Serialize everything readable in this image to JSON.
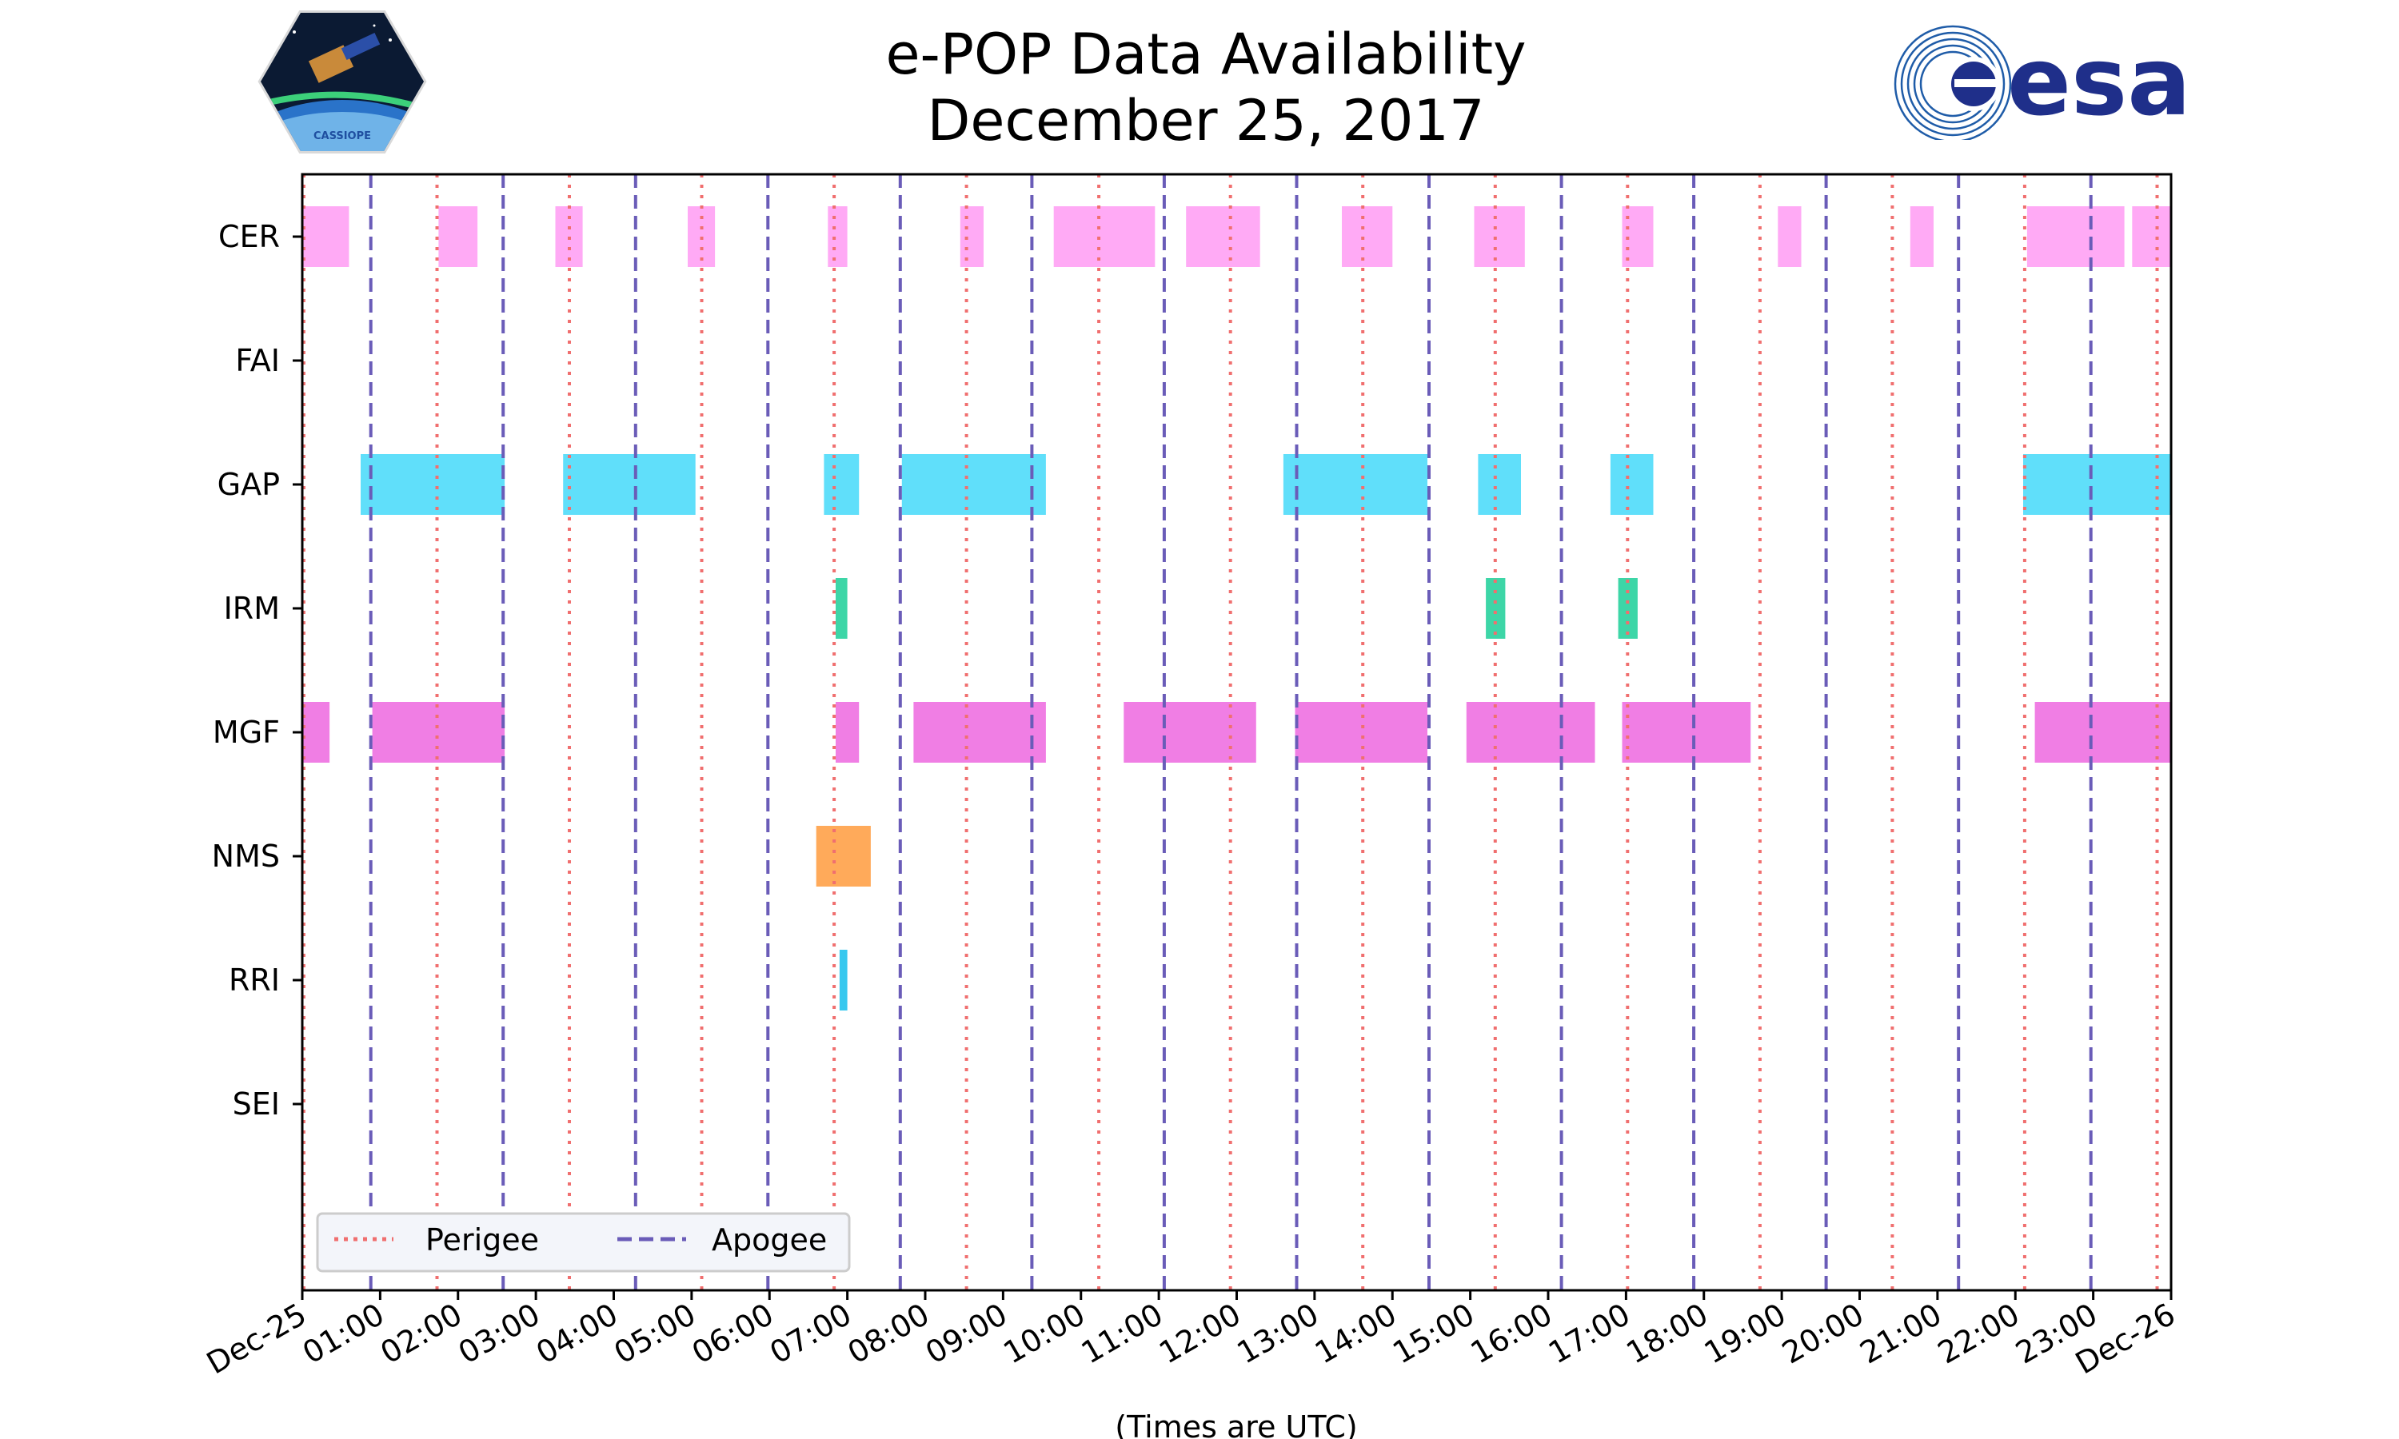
{
  "chart_data": {
    "type": "broken_barh",
    "title": [
      "e-POP Data Availability",
      "December 25, 2017"
    ],
    "xlabel": "(Times are UTC)",
    "ylabel": "",
    "xlim": [
      0,
      24
    ],
    "x_tick_labels": [
      "Dec-25",
      "01:00",
      "02:00",
      "03:00",
      "04:00",
      "05:00",
      "06:00",
      "07:00",
      "08:00",
      "09:00",
      "10:00",
      "11:00",
      "12:00",
      "13:00",
      "14:00",
      "15:00",
      "16:00",
      "17:00",
      "18:00",
      "19:00",
      "20:00",
      "21:00",
      "22:00",
      "23:00",
      "Dec-26"
    ],
    "instruments": [
      "CER",
      "FAI",
      "GAP",
      "IRM",
      "MGF",
      "NMS",
      "RRI",
      "SEI"
    ],
    "colors": {
      "CER": "#ffaaf5",
      "GAP": "#60dffa",
      "IRM": "#3dd6a7",
      "MGF": "#f07ee4",
      "NMS": "#ffaa5a",
      "RRI": "#37c8ef",
      "perigee": "#f06f6f",
      "apogee": "#6a5cb8"
    },
    "series": [
      {
        "name": "CER",
        "intervals": [
          [
            0.0,
            0.6
          ],
          [
            1.75,
            2.25
          ],
          [
            3.25,
            3.6
          ],
          [
            4.95,
            5.3
          ],
          [
            6.75,
            7.0
          ],
          [
            8.45,
            8.75
          ],
          [
            9.65,
            10.95
          ],
          [
            11.35,
            12.3
          ],
          [
            13.35,
            14.0
          ],
          [
            15.05,
            15.7
          ],
          [
            16.95,
            17.35
          ],
          [
            18.95,
            19.25
          ],
          [
            20.65,
            20.95
          ],
          [
            22.15,
            23.4
          ],
          [
            23.5,
            24.0
          ]
        ]
      },
      {
        "name": "FAI",
        "intervals": []
      },
      {
        "name": "GAP",
        "intervals": [
          [
            0.75,
            2.6
          ],
          [
            3.35,
            5.05
          ],
          [
            6.7,
            7.15
          ],
          [
            7.7,
            9.55
          ],
          [
            12.6,
            14.45
          ],
          [
            15.1,
            15.65
          ],
          [
            16.8,
            17.35
          ],
          [
            22.1,
            24.0
          ]
        ]
      },
      {
        "name": "IRM",
        "intervals": [
          [
            6.85,
            7.0
          ],
          [
            15.2,
            15.45
          ],
          [
            16.9,
            17.15
          ]
        ]
      },
      {
        "name": "MGF",
        "intervals": [
          [
            0.0,
            0.35
          ],
          [
            0.9,
            2.6
          ],
          [
            6.85,
            7.15
          ],
          [
            7.85,
            9.55
          ],
          [
            10.55,
            12.25
          ],
          [
            12.75,
            14.45
          ],
          [
            14.95,
            16.6
          ],
          [
            16.95,
            18.6
          ],
          [
            22.25,
            24.0
          ]
        ]
      },
      {
        "name": "NMS",
        "intervals": [
          [
            6.6,
            7.3
          ]
        ]
      },
      {
        "name": "RRI",
        "intervals": [
          [
            6.9,
            7.0
          ]
        ]
      },
      {
        "name": "SEI",
        "intervals": []
      }
    ],
    "perigee_times": [
      0.02,
      1.73,
      3.43,
      5.13,
      6.83,
      8.53,
      10.23,
      11.92,
      13.62,
      15.32,
      17.02,
      18.72,
      20.42,
      22.12,
      23.82
    ],
    "apogee_times": [
      0.88,
      2.58,
      4.28,
      5.98,
      7.68,
      9.37,
      11.07,
      12.77,
      14.47,
      16.17,
      17.87,
      19.57,
      21.27,
      22.97
    ],
    "legend": {
      "position": "lower-left",
      "entries": [
        "Perigee",
        "Apogee"
      ]
    }
  },
  "logos": {
    "left_caption": "CASSIOPE",
    "right_text": "esa"
  }
}
